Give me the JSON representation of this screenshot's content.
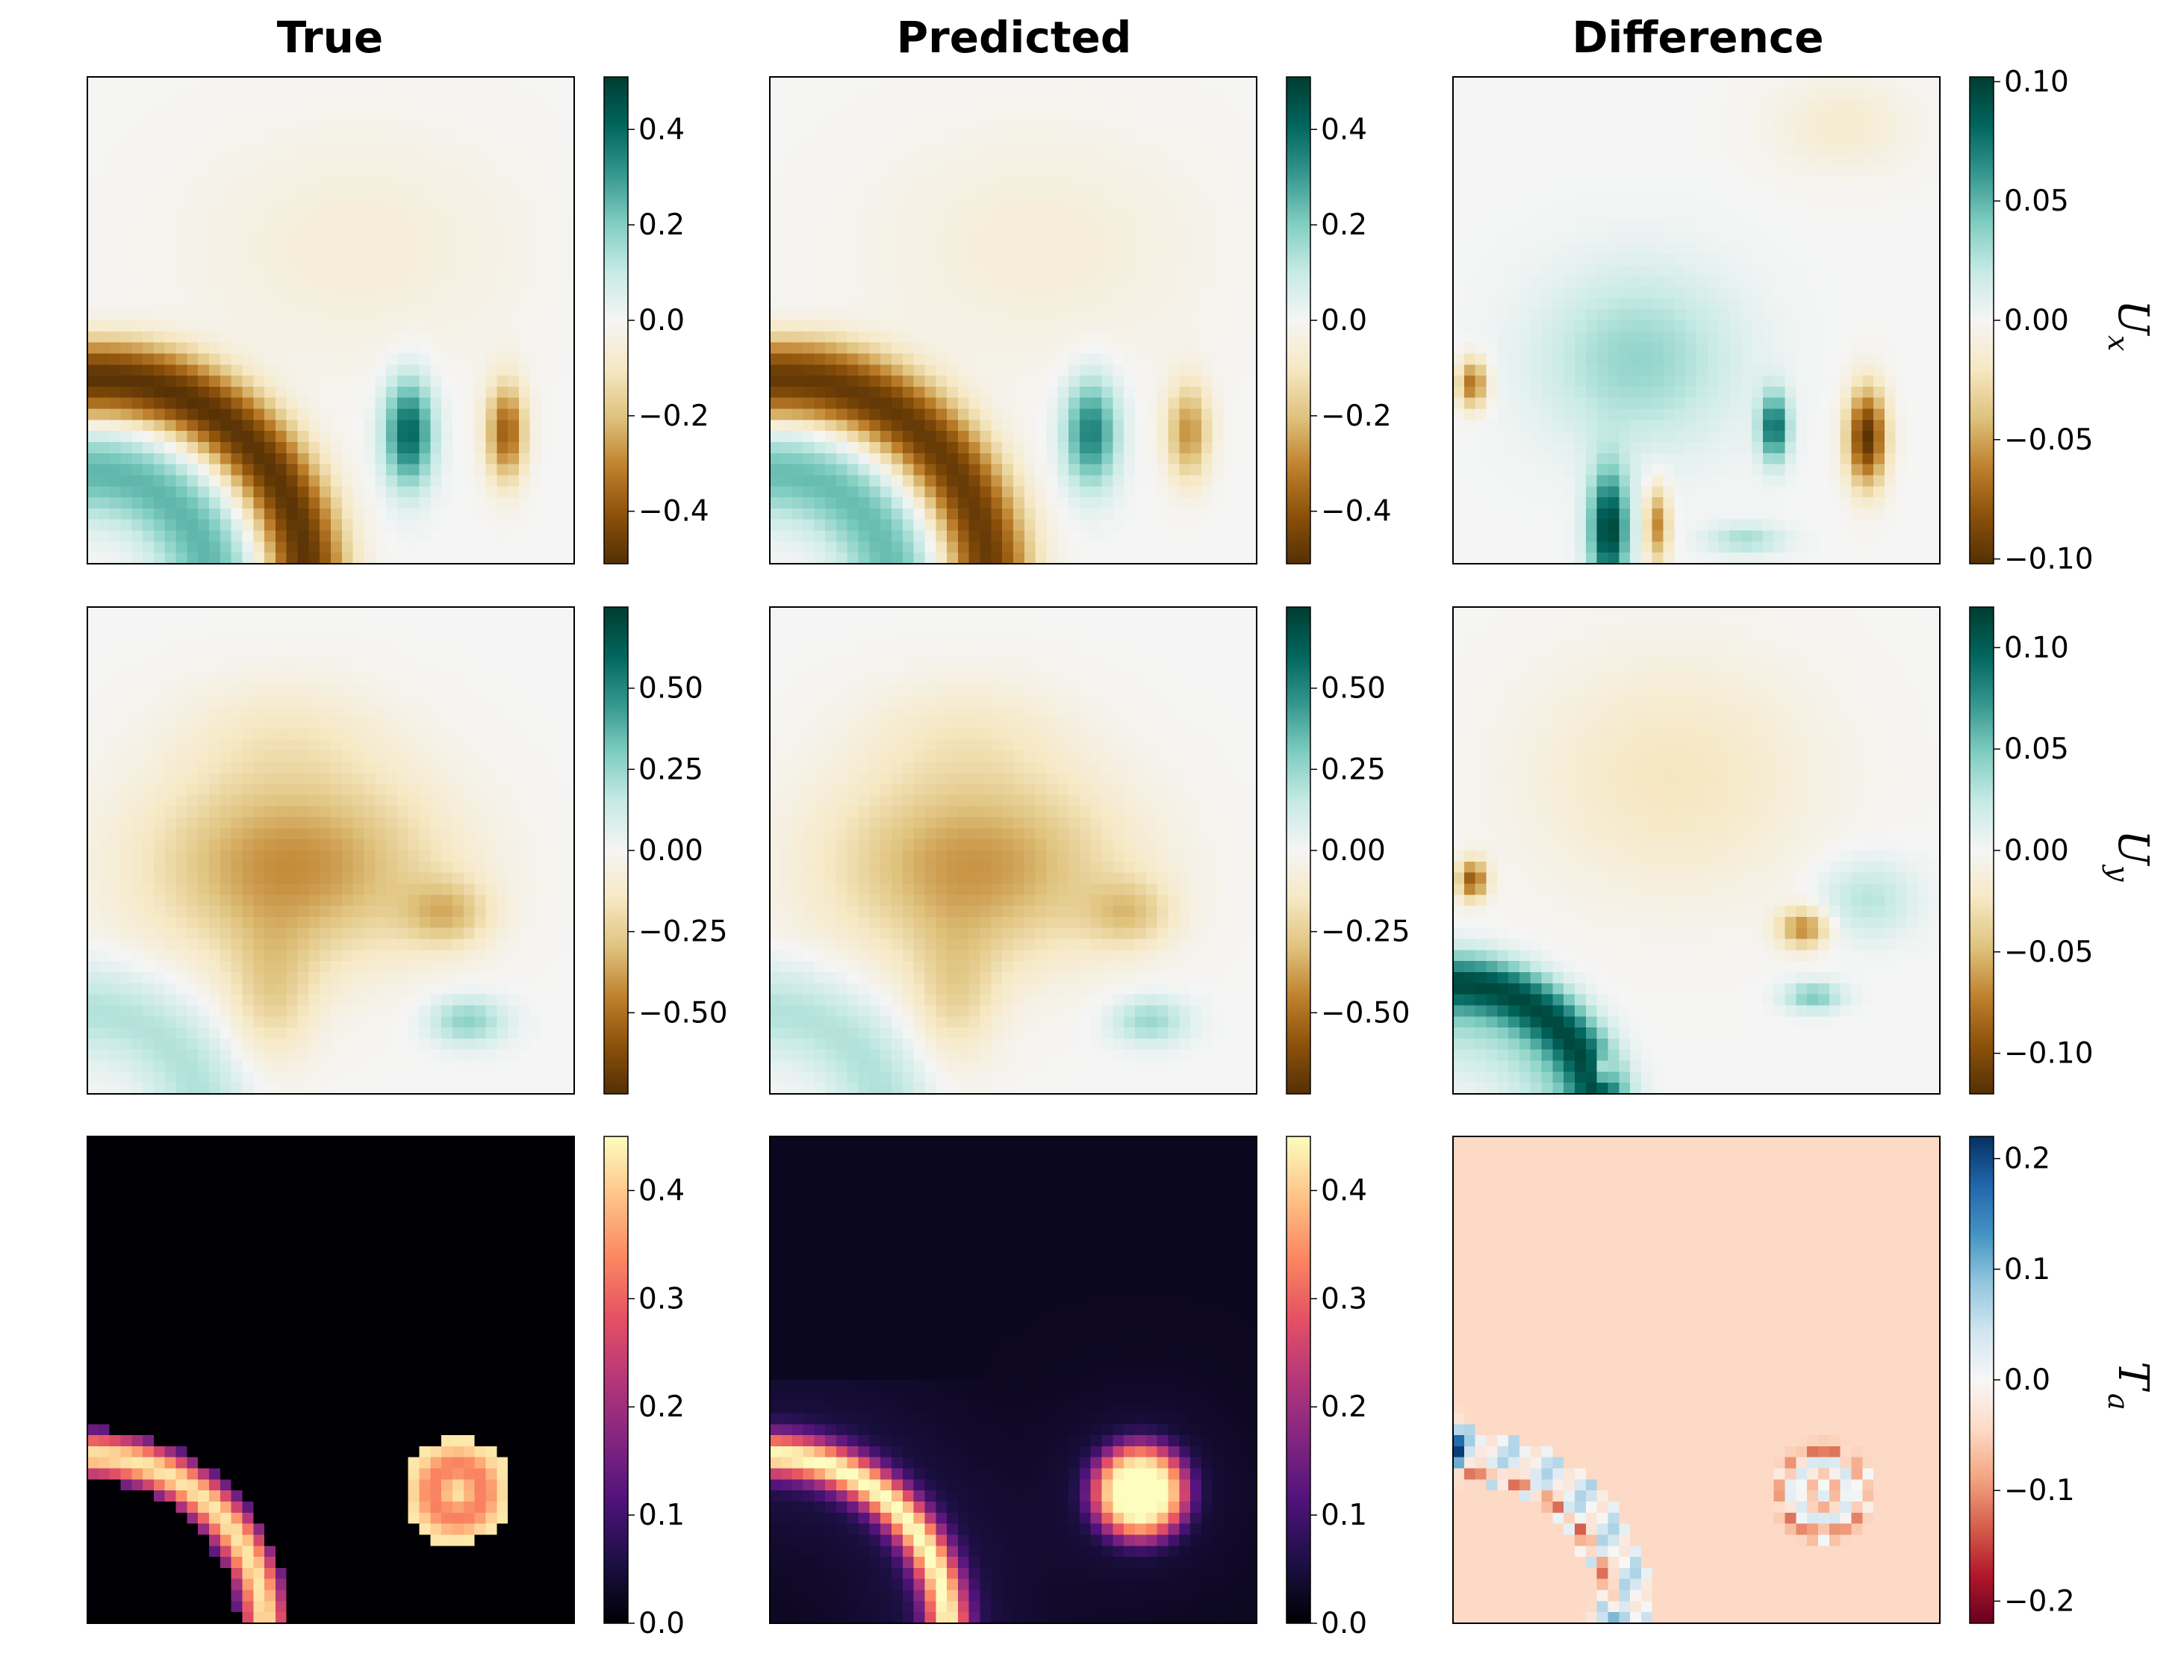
{
  "colors": {
    "brbg": [
      "#543005",
      "#8c510a",
      "#bf812d",
      "#dfc27d",
      "#f6e8c3",
      "#f5f5f5",
      "#c7eae5",
      "#80cdc1",
      "#35978f",
      "#01665e",
      "#003c30"
    ],
    "magma": [
      "#000004",
      "#1c1044",
      "#4f127b",
      "#812581",
      "#b5367a",
      "#e55064",
      "#fb8761",
      "#fec287",
      "#fcfdbf"
    ],
    "rdbu": [
      "#67001f",
      "#b2182b",
      "#d6604d",
      "#f4a582",
      "#fddbc7",
      "#f7f7f7",
      "#d1e5f0",
      "#92c5de",
      "#4393c3",
      "#2166ac",
      "#053061"
    ]
  },
  "chart_data": {
    "type": "heatmap",
    "column_titles": [
      "True",
      "Predicted",
      "Difference"
    ],
    "row_labels": [
      {
        "main": "U",
        "sub": "x"
      },
      {
        "main": "U",
        "sub": "y"
      },
      {
        "main": "T",
        "sub": "a"
      }
    ],
    "panels": [
      {
        "row": 0,
        "col": 0,
        "name": "Ux-true",
        "cmap": "brbg",
        "vmin": -0.51,
        "vmax": 0.51,
        "ticks": [
          "0.4",
          "0.2",
          "0.0",
          "−0.2",
          "−0.4"
        ],
        "tick_values": [
          0.4,
          0.2,
          0.0,
          -0.2,
          -0.4
        ]
      },
      {
        "row": 0,
        "col": 1,
        "name": "Ux-predicted",
        "cmap": "brbg",
        "vmin": -0.51,
        "vmax": 0.51,
        "ticks": [
          "0.4",
          "0.2",
          "0.0",
          "−0.2",
          "−0.4"
        ],
        "tick_values": [
          0.4,
          0.2,
          0.0,
          -0.2,
          -0.4
        ]
      },
      {
        "row": 0,
        "col": 2,
        "name": "Ux-difference",
        "cmap": "brbg",
        "vmin": -0.102,
        "vmax": 0.102,
        "ticks": [
          "0.10",
          "0.05",
          "0.00",
          "−0.05",
          "−0.10"
        ],
        "tick_values": [
          0.1,
          0.05,
          0.0,
          -0.05,
          -0.1
        ]
      },
      {
        "row": 1,
        "col": 0,
        "name": "Uy-true",
        "cmap": "brbg",
        "vmin": -0.75,
        "vmax": 0.75,
        "ticks": [
          "0.50",
          "0.25",
          "0.00",
          "−0.25",
          "−0.50"
        ],
        "tick_values": [
          0.5,
          0.25,
          0.0,
          -0.25,
          -0.5
        ]
      },
      {
        "row": 1,
        "col": 1,
        "name": "Uy-predicted",
        "cmap": "brbg",
        "vmin": -0.75,
        "vmax": 0.75,
        "ticks": [
          "0.50",
          "0.25",
          "0.00",
          "−0.25",
          "−0.50"
        ],
        "tick_values": [
          0.5,
          0.25,
          0.0,
          -0.25,
          -0.5
        ]
      },
      {
        "row": 1,
        "col": 2,
        "name": "Uy-difference",
        "cmap": "brbg",
        "vmin": -0.12,
        "vmax": 0.12,
        "ticks": [
          "0.10",
          "0.05",
          "0.00",
          "−0.05",
          "−0.10"
        ],
        "tick_values": [
          0.1,
          0.05,
          0.0,
          -0.05,
          -0.1
        ]
      },
      {
        "row": 2,
        "col": 0,
        "name": "Ta-true",
        "cmap": "magma",
        "vmin": 0.0,
        "vmax": 0.45,
        "ticks": [
          "0.4",
          "0.3",
          "0.2",
          "0.1",
          "0.0"
        ],
        "tick_values": [
          0.4,
          0.3,
          0.2,
          0.1,
          0.0
        ]
      },
      {
        "row": 2,
        "col": 1,
        "name": "Ta-predicted",
        "cmap": "magma",
        "vmin": 0.0,
        "vmax": 0.45,
        "ticks": [
          "0.4",
          "0.3",
          "0.2",
          "0.1",
          "0.0"
        ],
        "tick_values": [
          0.4,
          0.3,
          0.2,
          0.1,
          0.0
        ]
      },
      {
        "row": 2,
        "col": 2,
        "name": "Ta-difference",
        "cmap": "rdbu",
        "vmin": -0.22,
        "vmax": 0.22,
        "ticks": [
          "0.2",
          "0.1",
          "0.0",
          "−0.1",
          "−0.2"
        ],
        "tick_values": [
          0.2,
          0.1,
          0.0,
          -0.1,
          -0.2
        ]
      }
    ]
  }
}
